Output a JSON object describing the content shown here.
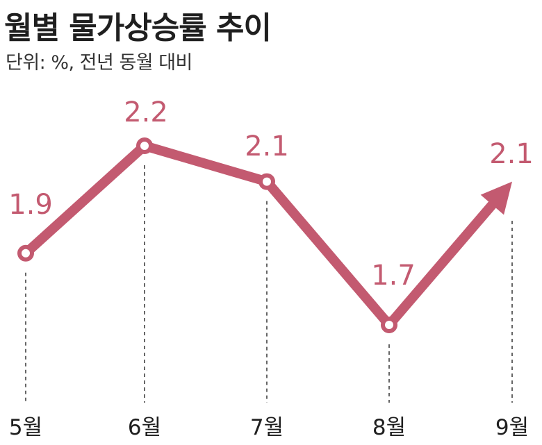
{
  "title": "월별 물가상승률 추이",
  "subtitle": "단위: %, 전년 동월 대비",
  "colors": {
    "accent": "#c35a70",
    "text": "#1f1f1f"
  },
  "chart_data": {
    "type": "line",
    "categories": [
      "5월",
      "6월",
      "7월",
      "8월",
      "9월"
    ],
    "values": [
      1.9,
      2.2,
      2.1,
      1.7,
      2.1
    ],
    "value_labels": [
      "1.9",
      "2.2",
      "2.1",
      "1.7",
      "2.1"
    ],
    "last_point_marker": "arrow",
    "grid": false,
    "legend": "none"
  }
}
